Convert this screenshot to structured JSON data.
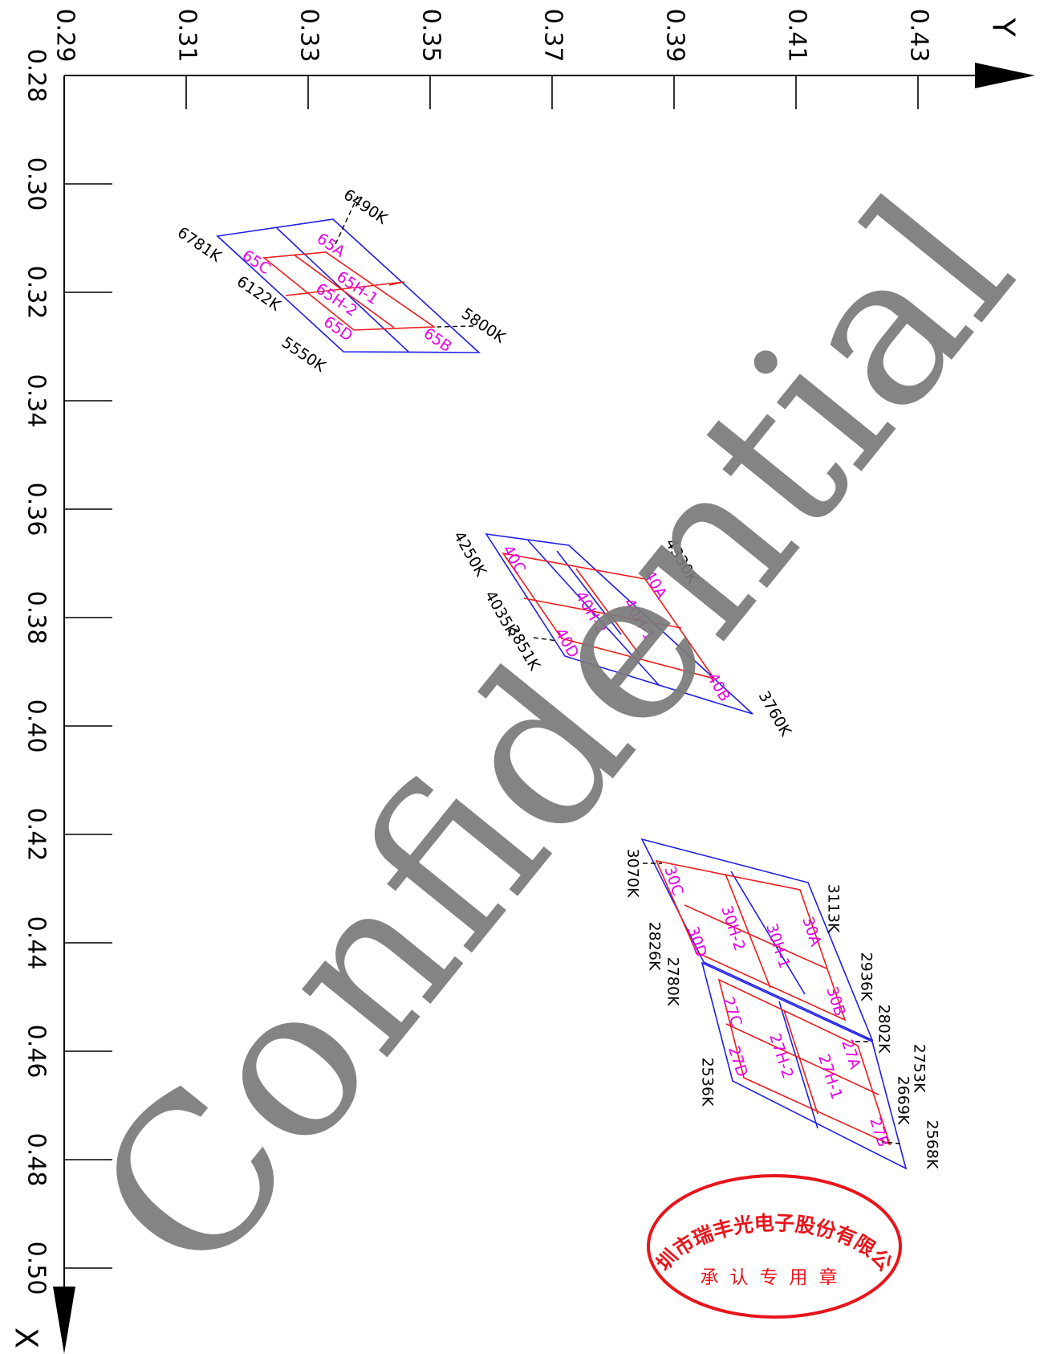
{
  "axes": {
    "y_name": "Y",
    "x_name": "X",
    "y_ticks": [
      "0.29",
      "0.31",
      "0.33",
      "0.35",
      "0.37",
      "0.39",
      "0.41",
      "0.43"
    ],
    "x_ticks": [
      "0.28",
      "0.30",
      "0.32",
      "0.34",
      "0.36",
      "0.38",
      "0.40",
      "0.42",
      "0.44",
      "0.46",
      "0.48",
      "0.50"
    ]
  },
  "groups": [
    {
      "cct_labels": [
        "6490K",
        "6781K",
        "6122K",
        "5550K",
        "5800K"
      ],
      "bin_labels": [
        "65A",
        "65C",
        "65H-1",
        "65H-2",
        "65D",
        "65B"
      ]
    },
    {
      "cct_labels": [
        "4250K",
        "4330K",
        "4035K",
        "3851K",
        "3760K"
      ],
      "bin_labels": [
        "40C",
        "40A",
        "40H-2",
        "40H-1",
        "40D",
        "40B"
      ]
    },
    {
      "cct_labels": [
        "3070K",
        "3113K",
        "2826K",
        "2780K",
        "2936K",
        "2802K",
        "2753K",
        "2669K",
        "2536K",
        "2568K"
      ],
      "bin_labels": [
        "30C",
        "30A",
        "30H-2",
        "30H-1",
        "30D",
        "30B",
        "27C",
        "27A",
        "27H-2",
        "27H-1",
        "27D",
        "27B"
      ]
    }
  ],
  "watermark": "Confidential",
  "seal": {
    "outer_text": "深圳市瑞丰光电子股份有限公司",
    "inner_text": "承认专用章"
  },
  "colors": {
    "outer_boundary": "#1f1fe6",
    "inner_boundary": "#ee1c1c",
    "bin_text": "#e800e8",
    "seal": "#e8151b",
    "watermark": "#7a7a7a"
  }
}
